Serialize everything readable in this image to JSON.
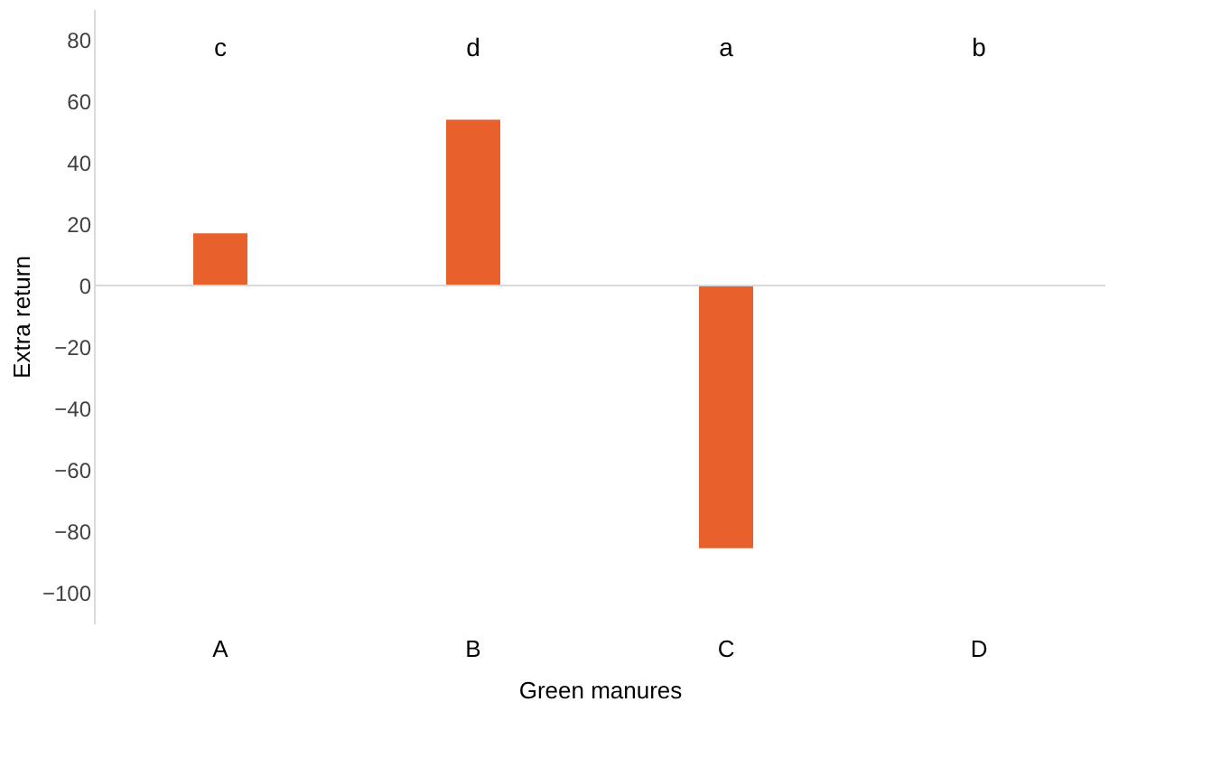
{
  "chart_data": {
    "type": "bar",
    "xlabel": "Green manures",
    "ylabel": "Extra return",
    "categories": [
      "A",
      "B",
      "C",
      "D"
    ],
    "series": [
      {
        "color": "#e8602c",
        "values": [
          17,
          54,
          -85.5,
          0
        ]
      }
    ],
    "ylim": [
      -110,
      90
    ],
    "yticks": [
      -100,
      -80,
      -60,
      -40,
      -20,
      0,
      20,
      40,
      60,
      80
    ],
    "grid": false,
    "ref_lines": [
      {
        "axis": "y",
        "value": 0,
        "color": "#d9d9d9"
      }
    ],
    "annotations": [
      "c",
      "d",
      "a",
      "b"
    ]
  }
}
